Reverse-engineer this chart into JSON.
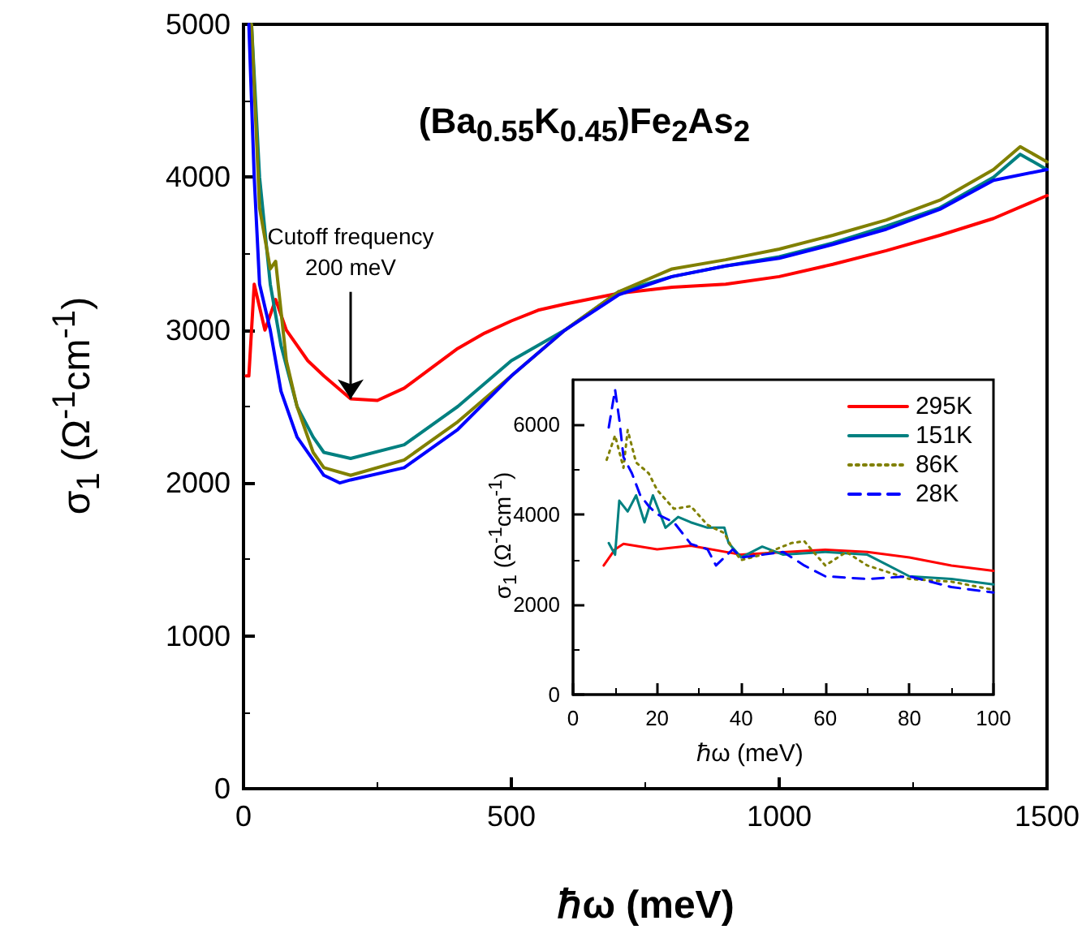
{
  "chart_data": [
    {
      "type": "line",
      "title": "(Ba$_{0.55}$K$_{0.45}$)Fe$_{2}$As$_{2}$",
      "xlabel": "ℏω (meV)",
      "ylabel": "σ$_{1}$ (Ω$^{-1}$cm$^{-1}$)",
      "xlim": [
        0,
        1500
      ],
      "xticks": [
        0,
        500,
        1000,
        1500
      ],
      "ylim": [
        0,
        5000
      ],
      "yticks": [
        0,
        1000,
        2000,
        3000,
        4000,
        5000
      ],
      "grid": false,
      "legend": false,
      "marker": "none",
      "line_style": "solid",
      "annotations": [
        {
          "text": "Cutoff frequency\n200 meV",
          "x": 200,
          "y": 2550
        }
      ],
      "series": [
        {
          "color": "#ff0000",
          "x": [
            5,
            10,
            20,
            40,
            60,
            80,
            100,
            120,
            150,
            200,
            250,
            300,
            350,
            400,
            450,
            500,
            550,
            600,
            700,
            800,
            900,
            1000,
            1100,
            1200,
            1300,
            1400,
            1500
          ],
          "values": [
            2700,
            2700,
            3300,
            3000,
            3200,
            3000,
            2900,
            2800,
            2700,
            2550,
            2540,
            2620,
            2750,
            2880,
            2980,
            3060,
            3130,
            3170,
            3240,
            3280,
            3300,
            3350,
            3430,
            3520,
            3620,
            3730,
            3880
          ]
        },
        {
          "color": "#008080",
          "x": [
            15,
            30,
            50,
            70,
            100,
            130,
            150,
            200,
            300,
            400,
            500,
            600,
            700,
            800,
            900,
            1000,
            1100,
            1200,
            1300,
            1400,
            1450,
            1500
          ],
          "values": [
            5000,
            4000,
            3300,
            2900,
            2500,
            2300,
            2200,
            2160,
            2250,
            2500,
            2800,
            3000,
            3250,
            3350,
            3420,
            3480,
            3570,
            3680,
            3800,
            4000,
            4150,
            4050
          ]
        },
        {
          "color": "#808000",
          "x": [
            15,
            30,
            50,
            60,
            80,
            100,
            130,
            150,
            200,
            300,
            400,
            500,
            600,
            700,
            800,
            900,
            1000,
            1100,
            1200,
            1300,
            1400,
            1450,
            1500
          ],
          "values": [
            5000,
            3800,
            3400,
            3450,
            2800,
            2500,
            2200,
            2100,
            2050,
            2150,
            2400,
            2700,
            3000,
            3250,
            3400,
            3460,
            3530,
            3620,
            3720,
            3850,
            4050,
            4200,
            4100
          ]
        },
        {
          "color": "#0000ff",
          "x": [
            10,
            20,
            30,
            50,
            70,
            100,
            150,
            180,
            200,
            300,
            400,
            500,
            600,
            700,
            800,
            900,
            1000,
            1100,
            1200,
            1300,
            1400,
            1500
          ],
          "values": [
            5000,
            4000,
            3300,
            3000,
            2600,
            2300,
            2050,
            2000,
            2020,
            2100,
            2350,
            2700,
            3000,
            3230,
            3350,
            3420,
            3470,
            3560,
            3660,
            3790,
            3980,
            4050
          ]
        }
      ]
    },
    {
      "type": "line",
      "xlabel": "ℏω (meV)",
      "ylabel": "σ$_{1}$ (Ω$^{-1}$cm$^{-1}$)",
      "xlim": [
        0,
        100
      ],
      "xticks": [
        0,
        20,
        40,
        60,
        80,
        100
      ],
      "ylim": [
        0,
        7000
      ],
      "yticks": [
        0,
        2000,
        4000,
        6000
      ],
      "grid": false,
      "legend": "top right",
      "marker": "none",
      "series": [
        {
          "name": "295K",
          "color": "#ff0000",
          "line_style": "solid",
          "x": [
            7.3,
            10,
            12,
            20,
            28,
            40,
            60,
            70,
            80,
            90,
            100
          ],
          "values": [
            2870,
            3230,
            3350,
            3230,
            3310,
            3110,
            3220,
            3170,
            3050,
            2870,
            2750
          ]
        },
        {
          "name": "151K",
          "color": "#008080",
          "line_style": "solid",
          "x": [
            8.5,
            10,
            11,
            13,
            15,
            17,
            19,
            22,
            25,
            28,
            32,
            36,
            37,
            40,
            45,
            50,
            60,
            70,
            75,
            80,
            90,
            100
          ],
          "values": [
            3370,
            3110,
            4310,
            4070,
            4430,
            3830,
            4430,
            3710,
            3950,
            3830,
            3710,
            3710,
            3370,
            3050,
            3290,
            3110,
            3170,
            3110,
            2870,
            2630,
            2570,
            2450
          ]
        },
        {
          "name": "86K",
          "color": "#808000",
          "line_style": "dotted",
          "x": [
            8,
            10,
            12,
            13,
            15,
            18,
            20,
            24,
            28,
            32,
            36,
            38,
            40,
            45,
            52,
            55,
            60,
            65,
            70,
            80,
            90,
            100
          ],
          "values": [
            5220,
            5760,
            5040,
            5880,
            5160,
            4920,
            4550,
            4130,
            4190,
            3770,
            3590,
            3230,
            2990,
            3110,
            3370,
            3410,
            2870,
            3170,
            2870,
            2570,
            2510,
            2330
          ]
        },
        {
          "name": "28K",
          "color": "#0000ff",
          "line_style": "dashed",
          "x": [
            8.5,
            10,
            11,
            12,
            14,
            16,
            18,
            20,
            24,
            28,
            32,
            34,
            38,
            40,
            50,
            55,
            60,
            70,
            80,
            90,
            100
          ],
          "values": [
            5940,
            6780,
            6120,
            5280,
            4920,
            4430,
            4190,
            4010,
            3830,
            3350,
            3230,
            2870,
            3230,
            3050,
            3170,
            2870,
            2630,
            2570,
            2630,
            2390,
            2270
          ]
        }
      ]
    }
  ]
}
